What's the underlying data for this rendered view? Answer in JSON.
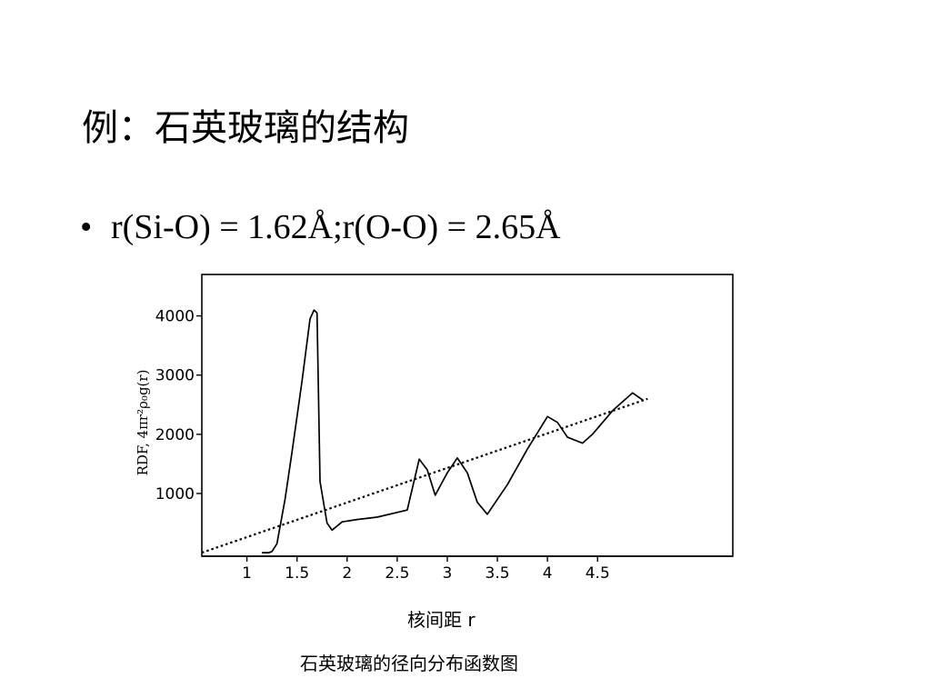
{
  "slide": {
    "title": "例：石英玻璃的结构",
    "bullet_marker": "•",
    "bullet_text": "r(Si-O) = 1.62Å;r(O-O) = 2.65Å",
    "caption": "石英玻璃的径向分布函数图"
  },
  "chart_data": {
    "type": "line",
    "title": "",
    "xlabel": "核间距 r",
    "ylabel": "RDF, 4πr²ρ₀g(r)",
    "xlim": [
      0.55,
      5.85
    ],
    "ylim": [
      -60,
      4700
    ],
    "x_ticks": [
      {
        "value": 1,
        "label": "1"
      },
      {
        "value": 1.5,
        "label": "1.5"
      },
      {
        "value": 2,
        "label": "2"
      },
      {
        "value": 2.5,
        "label": "2.5"
      },
      {
        "value": 3,
        "label": "3"
      },
      {
        "value": 3.5,
        "label": "3.5"
      },
      {
        "value": 4,
        "label": "4"
      },
      {
        "value": 4.5,
        "label": "4.5"
      }
    ],
    "y_ticks": [
      {
        "value": 1000,
        "label": "1000"
      },
      {
        "value": 2000,
        "label": "2000"
      },
      {
        "value": 3000,
        "label": "3000"
      },
      {
        "value": 4000,
        "label": "4000"
      }
    ],
    "grid": false,
    "series": [
      {
        "style": "solid",
        "x": [
          1.15,
          1.22,
          1.25,
          1.3,
          1.38,
          1.45,
          1.55,
          1.63,
          1.67,
          1.7,
          1.73,
          1.8,
          1.85,
          1.95,
          2.1,
          2.3,
          2.6,
          2.72,
          2.8,
          2.88,
          3.0,
          3.1,
          3.2,
          3.3,
          3.4,
          3.6,
          3.8,
          4.0,
          4.1,
          4.2,
          4.35,
          4.45,
          4.55,
          4.65,
          4.85,
          4.95
        ],
        "y": [
          0,
          0,
          20,
          150,
          900,
          1700,
          2900,
          3950,
          4100,
          4050,
          1200,
          500,
          380,
          520,
          560,
          600,
          720,
          1580,
          1400,
          970,
          1350,
          1600,
          1350,
          850,
          650,
          1150,
          1750,
          2300,
          2200,
          1950,
          1850,
          2000,
          2200,
          2400,
          2700,
          2580
        ]
      },
      {
        "style": "dotted",
        "x": [
          0.55,
          5.0
        ],
        "y": [
          0,
          2600
        ]
      }
    ]
  }
}
